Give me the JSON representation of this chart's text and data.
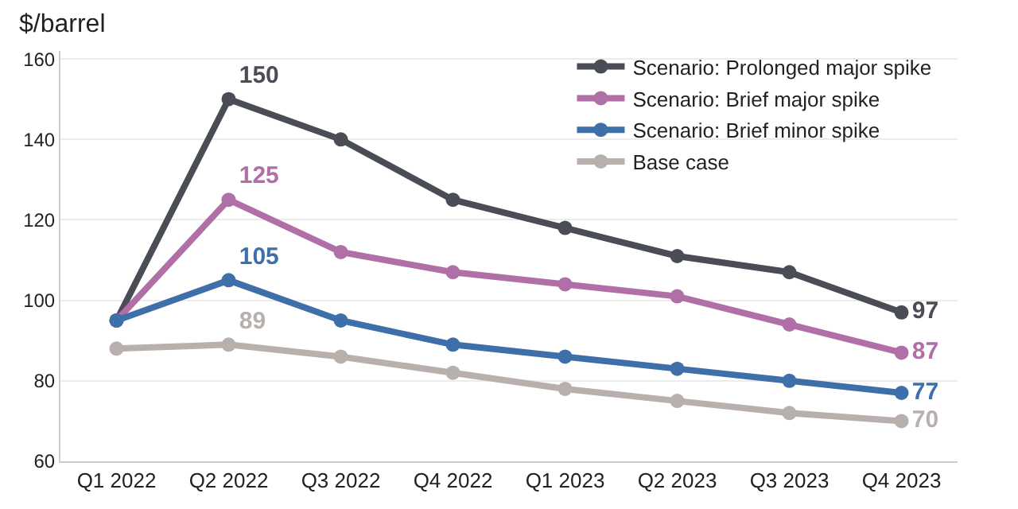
{
  "chart_data": {
    "type": "line",
    "ylabel": "$/barrel",
    "categories": [
      "Q1 2022",
      "Q2 2022",
      "Q3 2022",
      "Q4 2022",
      "Q1 2023",
      "Q2 2023",
      "Q3 2023",
      "Q4 2023"
    ],
    "series": [
      {
        "name": "Scenario: Prolonged major spike",
        "color": "#4a4d55",
        "values": [
          95,
          150,
          140,
          125,
          118,
          111,
          107,
          97
        ],
        "value_labels": [
          null,
          "150",
          null,
          null,
          null,
          null,
          null,
          "97"
        ]
      },
      {
        "name": "Scenario: Brief major spike",
        "color": "#b06fa6",
        "values": [
          95,
          125,
          112,
          107,
          104,
          101,
          94,
          87
        ],
        "value_labels": [
          null,
          "125",
          null,
          null,
          null,
          null,
          null,
          "87"
        ]
      },
      {
        "name": "Scenario: Brief minor spike",
        "color": "#3e6fa8",
        "values": [
          95,
          105,
          95,
          89,
          86,
          83,
          80,
          77
        ],
        "value_labels": [
          null,
          "105",
          null,
          null,
          null,
          null,
          null,
          "77"
        ]
      },
      {
        "name": "Base case",
        "color": "#b8b0ad",
        "values": [
          88,
          89,
          86,
          82,
          78,
          75,
          72,
          70
        ],
        "value_labels": [
          null,
          "89",
          null,
          null,
          null,
          null,
          null,
          "70"
        ]
      }
    ],
    "ylim": [
      60,
      162
    ],
    "yticks": [
      60,
      80,
      100,
      120,
      140,
      160
    ],
    "grid": "y",
    "legend": "top right",
    "marker": "circle",
    "line_style": "solid"
  }
}
